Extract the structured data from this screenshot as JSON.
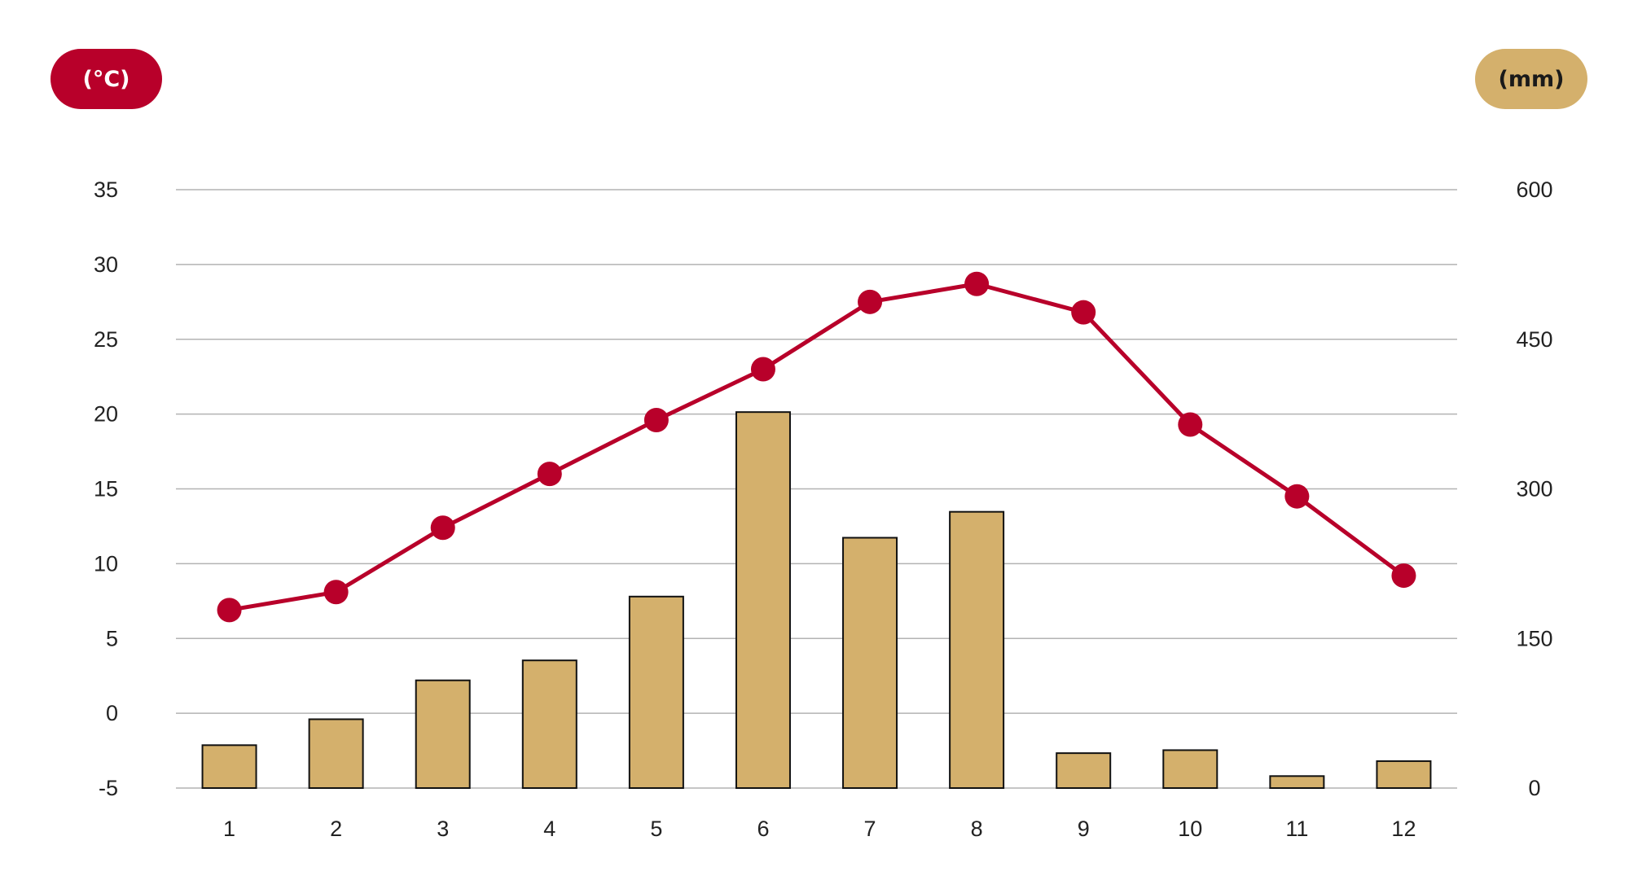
{
  "units": {
    "left": "(°C)",
    "right": "(mm)"
  },
  "colors": {
    "temperature": "#b8002a",
    "precipitation": "#d4b06c",
    "bar_border": "#111111",
    "grid": "#b3b3b3",
    "right_unit_text": "#1a1a1a",
    "left_unit_text": "#ffffff"
  },
  "chart_data": {
    "type": "bar",
    "categories": [
      "1",
      "2",
      "3",
      "4",
      "5",
      "6",
      "7",
      "8",
      "9",
      "10",
      "11",
      "12"
    ],
    "series": [
      {
        "type": "line",
        "axis": "left",
        "values": [
          6.9,
          8.1,
          12.4,
          16.0,
          19.6,
          23.0,
          27.5,
          28.7,
          26.8,
          19.3,
          14.5,
          9.2
        ]
      },
      {
        "type": "bar",
        "axis": "right",
        "values": [
          43,
          69,
          108,
          128,
          192,
          377,
          251,
          277,
          35,
          38,
          12,
          27
        ]
      }
    ],
    "y_left": {
      "ticks": [
        "35",
        "30",
        "25",
        "20",
        "15",
        "10",
        "5",
        "0",
        "-5"
      ],
      "min": -5,
      "max": 35
    },
    "y_right": {
      "ticks": [
        "600",
        "450",
        "300",
        "150",
        "0"
      ],
      "min": 0,
      "max": 600
    },
    "grid": true,
    "legend": "none"
  }
}
